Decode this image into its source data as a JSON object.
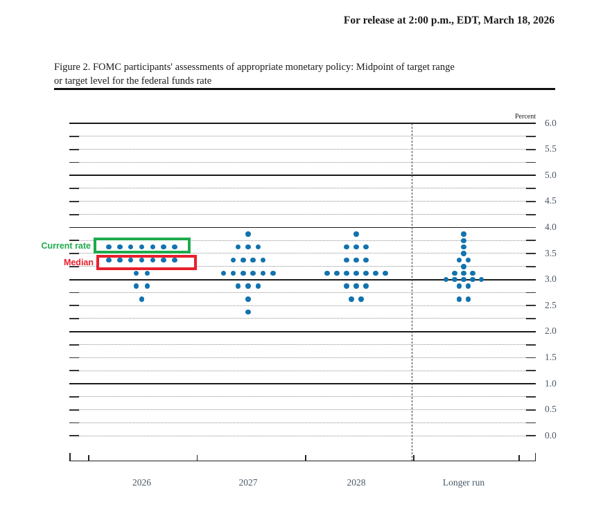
{
  "page": {
    "release_line": "For release at 2:00 p.m., EDT, March 18, 2026",
    "figure_title_line1": "Figure 2. FOMC participants' assessments of appropriate monetary policy: Midpoint of target range",
    "figure_title_line2": "or target level for the federal funds rate"
  },
  "chart_data": {
    "type": "scatter",
    "subtype": "fomc-dot-plot",
    "title": "FOMC participants' assessments of appropriate monetary policy: Midpoint of target range or target level for the federal funds rate",
    "unit_label": "Percent",
    "xlabel": "",
    "ylabel": "Percent",
    "ylim": [
      0.0,
      6.0
    ],
    "ytick_step": 0.25,
    "ylabel_step": 0.5,
    "ytick_labels": [
      "6.0",
      "5.5",
      "5.0",
      "4.5",
      "4.0",
      "3.5",
      "3.0",
      "2.5",
      "2.0",
      "1.5",
      "1.0",
      "0.5",
      "0.0"
    ],
    "solid_gridlines": [
      1.0,
      2.0,
      3.0,
      4.0,
      5.0,
      6.0
    ],
    "grid": "dotted-quarters-solid-integers",
    "legend_position": "none",
    "categories": [
      "2026",
      "2027",
      "2028",
      "Longer run"
    ],
    "participants_per_category": 19,
    "series": [
      {
        "category": "2026",
        "dots": [
          {
            "rate": 3.625,
            "count": 7
          },
          {
            "rate": 3.375,
            "count": 7
          },
          {
            "rate": 3.125,
            "count": 2
          },
          {
            "rate": 2.875,
            "count": 2
          },
          {
            "rate": 2.625,
            "count": 1
          }
        ]
      },
      {
        "category": "2027",
        "dots": [
          {
            "rate": 3.875,
            "count": 1
          },
          {
            "rate": 3.625,
            "count": 3
          },
          {
            "rate": 3.375,
            "count": 4
          },
          {
            "rate": 3.125,
            "count": 6
          },
          {
            "rate": 2.875,
            "count": 3
          },
          {
            "rate": 2.625,
            "count": 1
          },
          {
            "rate": 2.375,
            "count": 1
          }
        ]
      },
      {
        "category": "2028",
        "dots": [
          {
            "rate": 3.875,
            "count": 1
          },
          {
            "rate": 3.625,
            "count": 3
          },
          {
            "rate": 3.375,
            "count": 3
          },
          {
            "rate": 3.125,
            "count": 7
          },
          {
            "rate": 2.875,
            "count": 3
          },
          {
            "rate": 2.625,
            "count": 2
          }
        ]
      },
      {
        "category": "Longer run",
        "dots": [
          {
            "rate": 3.875,
            "count": 1
          },
          {
            "rate": 3.75,
            "count": 1
          },
          {
            "rate": 3.625,
            "count": 1
          },
          {
            "rate": 3.5,
            "count": 1
          },
          {
            "rate": 3.375,
            "count": 2
          },
          {
            "rate": 3.25,
            "count": 1
          },
          {
            "rate": 3.125,
            "count": 3
          },
          {
            "rate": 3.0,
            "count": 5
          },
          {
            "rate": 2.875,
            "count": 2
          },
          {
            "rate": 2.625,
            "count": 2
          }
        ]
      }
    ],
    "annotations": [
      {
        "label": "Current rate",
        "category": "2026",
        "rate": 3.625,
        "box_color": "#1faa4c",
        "text_color": "#1faa4c"
      },
      {
        "label": "Median",
        "category": "2026",
        "rate": 3.375,
        "box_color": "#e81f2c",
        "text_color": "#e81f2c"
      }
    ],
    "dot_color": "#1273ae",
    "axis_text_color": "#4a5866"
  }
}
